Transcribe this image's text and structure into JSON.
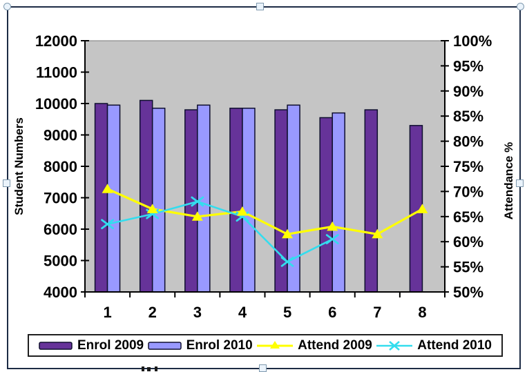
{
  "chart_data": {
    "type": "bar+line-combo",
    "categories": [
      "1",
      "2",
      "3",
      "4",
      "5",
      "6",
      "7",
      "8"
    ],
    "series": [
      {
        "name": "Enrol 2009",
        "type": "bar",
        "axis": "left",
        "color": "#663399",
        "marker": "none",
        "values": [
          10000,
          10100,
          9800,
          9850,
          9800,
          9550,
          9800,
          9300
        ]
      },
      {
        "name": "Enrol 2010",
        "type": "bar",
        "axis": "left",
        "color": "#9999FF",
        "marker": "none",
        "values": [
          9950,
          9850,
          9950,
          9850,
          9950,
          9700,
          null,
          null
        ]
      },
      {
        "name": "Attend 2009",
        "type": "line",
        "axis": "right",
        "color": "#FFFF00",
        "marker": "triangle",
        "values": [
          70.5,
          66.5,
          65,
          66,
          61.5,
          63,
          61.5,
          66.5
        ]
      },
      {
        "name": "Attend 2010",
        "type": "line",
        "axis": "right",
        "color": "#33DDEE",
        "marker": "x",
        "values": [
          63.5,
          65.5,
          68,
          65,
          56,
          60.5,
          null,
          null
        ]
      }
    ],
    "left_axis": {
      "title": "Student Numbers",
      "min": 4000,
      "max": 12000,
      "step": 1000,
      "tick_labels": [
        "4000",
        "5000",
        "6000",
        "7000",
        "8000",
        "9000",
        "10000",
        "11000",
        "12000"
      ]
    },
    "right_axis": {
      "title": "Attendance %",
      "min": 50,
      "max": 100,
      "step": 5,
      "tick_labels": [
        "50%",
        "55%",
        "60%",
        "65%",
        "70%",
        "75%",
        "80%",
        "85%",
        "90%",
        "95%",
        "100%"
      ]
    },
    "x_axis": {
      "tick_labels": [
        "1",
        "2",
        "3",
        "4",
        "5",
        "6",
        "7",
        "8"
      ]
    },
    "legend": {
      "position": "bottom",
      "items": [
        "Enrol 2009",
        "Enrol 2010",
        "Attend 2009",
        "Attend 2010"
      ]
    },
    "grid": "off",
    "plot_bg": "#C5C5C5"
  },
  "colors": {
    "frame": "#1C2B45",
    "legend_border": "#1F1F1F",
    "bar_outline": "#0E0E2E",
    "axis": "#000000",
    "handle_fill": "#EAF3FB",
    "handle_border": "#7F99AE"
  },
  "selection": {
    "handles": [
      "top-left",
      "top-center",
      "top-right",
      "middle-left",
      "middle-right",
      "bottom-center"
    ]
  }
}
